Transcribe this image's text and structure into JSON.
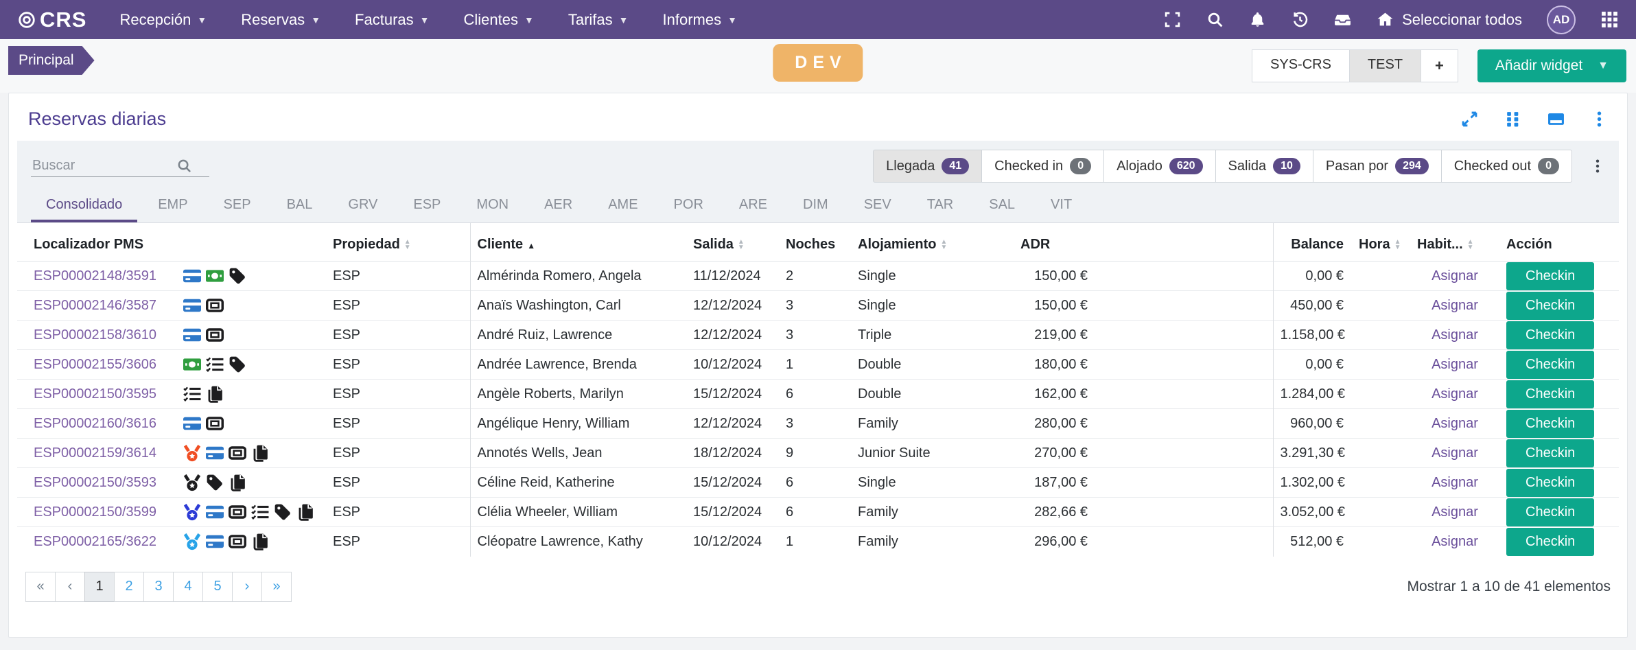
{
  "colors": {
    "navbar_purple": "#5b4a87",
    "accent_teal": "#0da78c",
    "dev_orange": "#efb468",
    "panel_icon_blue": "#1e88e5",
    "pagination_blue": "#3da0e3",
    "link_purple": "#7e5fa6",
    "badge_purple": "#5b4a87",
    "badge_gray": "#6d7278"
  },
  "navbar": {
    "brand": "CRS",
    "menus": [
      {
        "label": "Recepción"
      },
      {
        "label": "Reservas"
      },
      {
        "label": "Facturas"
      },
      {
        "label": "Clientes"
      },
      {
        "label": "Tarifas"
      },
      {
        "label": "Informes"
      }
    ],
    "select_all_label": "Seleccionar todos",
    "avatar_initials": "AD"
  },
  "subheader": {
    "breadcrumb": "Principal",
    "env_badge": "DEV",
    "workspace_tabs": [
      {
        "label": "SYS-CRS",
        "selected": false
      },
      {
        "label": "TEST",
        "selected": true
      }
    ],
    "add_tab_label": "+",
    "add_widget_label": "Añadir widget"
  },
  "panel": {
    "title": "Reservas diarias"
  },
  "filters": {
    "search_placeholder": "Buscar",
    "status_buttons": [
      {
        "label": "Llegada",
        "count": "41",
        "badge": "purple",
        "active": true
      },
      {
        "label": "Checked in",
        "count": "0",
        "badge": "gray",
        "active": false
      },
      {
        "label": "Alojado",
        "count": "620",
        "badge": "purple",
        "active": false
      },
      {
        "label": "Salida",
        "count": "10",
        "badge": "purple",
        "active": false
      },
      {
        "label": "Pasan por",
        "count": "294",
        "badge": "purple",
        "active": false
      },
      {
        "label": "Checked out",
        "count": "0",
        "badge": "gray",
        "active": false
      }
    ]
  },
  "tabs": {
    "items": [
      {
        "label": "Consolidado",
        "active": true
      },
      {
        "label": "EMP"
      },
      {
        "label": "SEP"
      },
      {
        "label": "BAL"
      },
      {
        "label": "GRV"
      },
      {
        "label": "ESP"
      },
      {
        "label": "MON"
      },
      {
        "label": "AER"
      },
      {
        "label": "AME"
      },
      {
        "label": "POR"
      },
      {
        "label": "ARE"
      },
      {
        "label": "DIM"
      },
      {
        "label": "SEV"
      },
      {
        "label": "TAR"
      },
      {
        "label": "SAL"
      },
      {
        "label": "VIT"
      }
    ]
  },
  "table": {
    "columns": [
      {
        "label": "Localizador PMS",
        "sort": "none"
      },
      {
        "label": "Propiedad",
        "sort": "both"
      },
      {
        "label": "Cliente",
        "sort": "asc"
      },
      {
        "label": "Salida",
        "sort": "both"
      },
      {
        "label": "Noches",
        "sort": "none"
      },
      {
        "label": "Alojamiento",
        "sort": "both"
      },
      {
        "label": "ADR",
        "sort": "none"
      },
      {
        "label": "Balance",
        "sort": "none"
      },
      {
        "label": "Hora",
        "sort": "both"
      },
      {
        "label": "Habit...",
        "sort": "both"
      },
      {
        "label": "Acción",
        "sort": "none"
      }
    ],
    "assign_label": "Asignar",
    "checkin_label": "Checkin",
    "rows": [
      {
        "localizador": "ESP00002148/3591",
        "icons": [
          {
            "name": "credit-card-icon",
            "color": "#2e78c8"
          },
          {
            "name": "money-bill-icon",
            "color": "#2f9e3f"
          },
          {
            "name": "tag-icon",
            "color": "#1d1d1f"
          }
        ],
        "propiedad": "ESP",
        "cliente": "Almérinda Romero, Angela",
        "salida": "11/12/2024",
        "noches": "2",
        "alojamiento": "Single",
        "adr": "150,00 €",
        "balance": "0,00 €",
        "hora": ""
      },
      {
        "localizador": "ESP00002146/3587",
        "icons": [
          {
            "name": "credit-card-icon",
            "color": "#2e78c8"
          },
          {
            "name": "ticket-icon",
            "color": "#1d1d1f"
          }
        ],
        "propiedad": "ESP",
        "cliente": "Anaïs Washington, Carl",
        "salida": "12/12/2024",
        "noches": "3",
        "alojamiento": "Single",
        "adr": "150,00 €",
        "balance": "450,00 €",
        "hora": ""
      },
      {
        "localizador": "ESP00002158/3610",
        "icons": [
          {
            "name": "credit-card-icon",
            "color": "#2e78c8"
          },
          {
            "name": "ticket-icon",
            "color": "#1d1d1f"
          }
        ],
        "propiedad": "ESP",
        "cliente": "André Ruiz, Lawrence",
        "salida": "12/12/2024",
        "noches": "3",
        "alojamiento": "Triple",
        "adr": "219,00 €",
        "balance": "1.158,00 €",
        "hora": ""
      },
      {
        "localizador": "ESP00002155/3606",
        "icons": [
          {
            "name": "money-bill-icon",
            "color": "#2f9e3f"
          },
          {
            "name": "checklist-icon",
            "color": "#1d1d1f"
          },
          {
            "name": "tag-icon",
            "color": "#1d1d1f"
          }
        ],
        "propiedad": "ESP",
        "cliente": "Andrée Lawrence, Brenda",
        "salida": "10/12/2024",
        "noches": "1",
        "alojamiento": "Double",
        "adr": "180,00 €",
        "balance": "0,00 €",
        "hora": ""
      },
      {
        "localizador": "ESP00002150/3595",
        "icons": [
          {
            "name": "checklist-icon",
            "color": "#1d1d1f"
          },
          {
            "name": "copy-icon",
            "color": "#1d1d1f"
          }
        ],
        "propiedad": "ESP",
        "cliente": "Angèle Roberts, Marilyn",
        "salida": "15/12/2024",
        "noches": "6",
        "alojamiento": "Double",
        "adr": "162,00 €",
        "balance": "1.284,00 €",
        "hora": ""
      },
      {
        "localizador": "ESP00002160/3616",
        "icons": [
          {
            "name": "credit-card-icon",
            "color": "#2e78c8"
          },
          {
            "name": "ticket-icon",
            "color": "#1d1d1f"
          }
        ],
        "propiedad": "ESP",
        "cliente": "Angélique Henry, William",
        "salida": "12/12/2024",
        "noches": "3",
        "alojamiento": "Family",
        "adr": "280,00 €",
        "balance": "960,00 €",
        "hora": ""
      },
      {
        "localizador": "ESP00002159/3614",
        "icons": [
          {
            "name": "medal-icon",
            "color": "#f04e23"
          },
          {
            "name": "credit-card-icon",
            "color": "#2e78c8"
          },
          {
            "name": "ticket-icon",
            "color": "#1d1d1f"
          },
          {
            "name": "copy-icon",
            "color": "#1d1d1f"
          }
        ],
        "propiedad": "ESP",
        "cliente": "Annotés Wells, Jean",
        "salida": "18/12/2024",
        "noches": "9",
        "alojamiento": "Junior Suite",
        "adr": "270,00 €",
        "balance": "3.291,30 €",
        "hora": ""
      },
      {
        "localizador": "ESP00002150/3593",
        "icons": [
          {
            "name": "medal-icon",
            "color": "#1d1d1f"
          },
          {
            "name": "tag-icon",
            "color": "#1d1d1f"
          },
          {
            "name": "copy-icon",
            "color": "#1d1d1f"
          }
        ],
        "propiedad": "ESP",
        "cliente": "Céline Reid, Katherine",
        "salida": "15/12/2024",
        "noches": "6",
        "alojamiento": "Single",
        "adr": "187,00 €",
        "balance": "1.302,00 €",
        "hora": ""
      },
      {
        "localizador": "ESP00002150/3599",
        "icons": [
          {
            "name": "medal-icon",
            "color": "#2c3bd6"
          },
          {
            "name": "credit-card-icon",
            "color": "#2e78c8"
          },
          {
            "name": "ticket-icon",
            "color": "#1d1d1f"
          },
          {
            "name": "checklist-icon",
            "color": "#1d1d1f"
          },
          {
            "name": "tag-icon",
            "color": "#1d1d1f"
          },
          {
            "name": "copy-icon",
            "color": "#1d1d1f"
          }
        ],
        "propiedad": "ESP",
        "cliente": "Clélia Wheeler, William",
        "salida": "15/12/2024",
        "noches": "6",
        "alojamiento": "Family",
        "adr": "282,66 €",
        "balance": "3.052,00 €",
        "hora": ""
      },
      {
        "localizador": "ESP00002165/3622",
        "icons": [
          {
            "name": "medal-icon",
            "color": "#27a3e8"
          },
          {
            "name": "credit-card-icon",
            "color": "#2e78c8"
          },
          {
            "name": "ticket-icon",
            "color": "#1d1d1f"
          },
          {
            "name": "copy-icon",
            "color": "#1d1d1f"
          }
        ],
        "propiedad": "ESP",
        "cliente": "Cléopatre Lawrence, Kathy",
        "salida": "10/12/2024",
        "noches": "1",
        "alojamiento": "Family",
        "adr": "296,00 €",
        "balance": "512,00 €",
        "hora": ""
      }
    ]
  },
  "pagination": {
    "first": "«",
    "prev": "‹",
    "pages": [
      "1",
      "2",
      "3",
      "4",
      "5"
    ],
    "next": "›",
    "last": "»",
    "active_page": "1",
    "summary": "Mostrar 1 a 10 de 41 elementos"
  }
}
